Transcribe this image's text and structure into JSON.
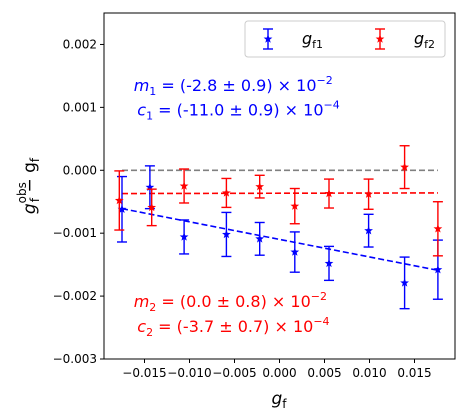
{
  "chart_data": {
    "type": "scatter",
    "xlabel": {
      "main": "g",
      "sub": "f"
    },
    "ylabel": {
      "main": "g",
      "sup": "obs",
      "sub": "f",
      "tail": " − g",
      "sub2": "f"
    },
    "xlim": [
      -0.0195,
      0.0195
    ],
    "ylim": [
      -0.003,
      0.0025
    ],
    "xticks": [
      -0.015,
      -0.01,
      -0.005,
      0.0,
      0.005,
      0.01,
      0.015
    ],
    "xtick_labels": [
      "−0.015",
      "−0.010",
      "−0.005",
      "0.000",
      "0.005",
      "0.010",
      "0.015"
    ],
    "yticks": [
      0.002,
      0.001,
      0.0,
      -0.001,
      -0.002,
      -0.003
    ],
    "ytick_labels": [
      "0.002",
      "0.001",
      "0.000",
      "−0.001",
      "−0.002",
      "−0.003"
    ],
    "legend": {
      "placement": "top-right",
      "entries": [
        {
          "main": "g",
          "sub": "f1",
          "color": "#0000ff"
        },
        {
          "main": "g",
          "sub": "f2",
          "color": "#ff0000"
        }
      ]
    },
    "series": [
      {
        "name": "gf1",
        "color": "#0000ff",
        "x": [
          -0.0175,
          -0.0144,
          -0.0106,
          -0.0059,
          -0.0022,
          0.0017,
          0.0055,
          0.0099,
          0.0139,
          0.0176
        ],
        "y": [
          -0.00062,
          -0.00027,
          -0.00106,
          -0.00102,
          -0.00109,
          -0.0013,
          -0.00148,
          -0.00096,
          -0.00179,
          -0.00158
        ],
        "yerr": [
          0.00052,
          0.00034,
          0.00027,
          0.00035,
          0.00026,
          0.00032,
          0.00027,
          0.00026,
          0.00041,
          0.00047
        ]
      },
      {
        "name": "gf2",
        "color": "#ff0000",
        "x": [
          -0.0178,
          -0.0142,
          -0.0106,
          -0.0059,
          -0.0022,
          0.0017,
          0.0055,
          0.0099,
          0.0139,
          0.0176
        ],
        "y": [
          -0.00048,
          -0.00059,
          -0.00025,
          -0.00036,
          -0.00026,
          -0.00057,
          -0.00037,
          -0.00038,
          5e-05,
          -0.00093
        ],
        "yerr": [
          0.00047,
          0.00029,
          0.00027,
          0.00023,
          0.00018,
          0.00028,
          0.00023,
          0.00024,
          0.00034,
          0.00043
        ]
      }
    ],
    "lines": [
      {
        "name": "zero-reference",
        "color": "#808080",
        "x": [
          -0.0175,
          0.0176
        ],
        "y": [
          0.0,
          0.0
        ]
      },
      {
        "name": "fit-gf1",
        "color": "#0000ff",
        "x": [
          -0.0175,
          0.0176
        ],
        "y": [
          -0.00061,
          -0.00159
        ]
      },
      {
        "name": "fit-gf2",
        "color": "#ff0000",
        "x": [
          -0.0175,
          0.0176
        ],
        "y": [
          -0.00037,
          -0.00036
        ]
      }
    ],
    "annotations": [
      {
        "name": "m1",
        "color": "#0000ff",
        "x": -0.0162,
        "y": 0.00126,
        "sym": "m",
        "sub": "1",
        "value": " = (-2.8 ± 0.9) × 10",
        "exp": "−2"
      },
      {
        "name": "c1",
        "color": "#0000ff",
        "x": -0.0158,
        "y": 0.00087,
        "sym": "c",
        "sub": "1",
        "value": " = (-11.0 ± 0.9) × 10",
        "exp": "−4"
      },
      {
        "name": "m2",
        "color": "#ff0000",
        "x": -0.0162,
        "y": -0.00217,
        "sym": "m",
        "sub": "2",
        "value": " = (0.0 ± 0.8) × 10",
        "exp": "−2"
      },
      {
        "name": "c2",
        "color": "#ff0000",
        "x": -0.0158,
        "y": -0.00257,
        "sym": "c",
        "sub": "2",
        "value": " = (-3.7 ± 0.7) × 10",
        "exp": "−4"
      }
    ]
  }
}
